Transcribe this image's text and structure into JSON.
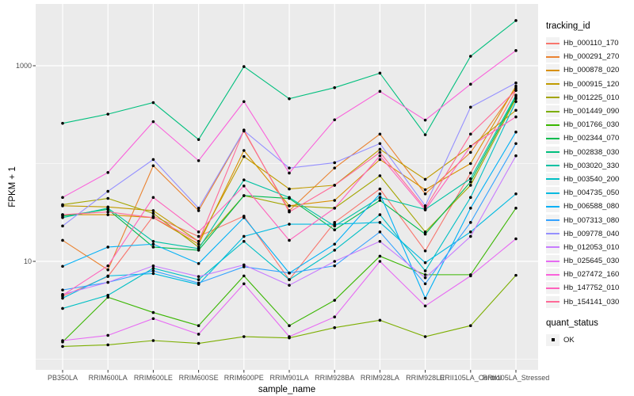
{
  "legend": {
    "tracking_title": "tracking_id",
    "quant_title": "quant_status",
    "quant_ok_label": "OK"
  },
  "chart_data": {
    "type": "line",
    "title": "",
    "xlabel": "sample_name",
    "ylabel": "FPKM + 1",
    "yscale": "log10",
    "ylim": [
      0.8,
      4300
    ],
    "grid": true,
    "legend_position": "right",
    "panel_bg": "#EBEBEB",
    "grid_color": "#FFFFFF",
    "point_color": "#000000",
    "yticks": [
      {
        "value": 10,
        "label": "10"
      },
      {
        "value": 1000,
        "label": "1000"
      }
    ],
    "minor_yticks": [
      1,
      100
    ],
    "categories": [
      "PB350LA",
      "RRIM600LA",
      "RRIM600LE",
      "RRIM600SE",
      "RRIM600PE",
      "RRIM901LA",
      "RRIM928BA",
      "RRIM928LA",
      "RRIM928LE",
      "RRII105LA_Control",
      "RRII105LA_Stressed"
    ],
    "series": [
      {
        "name": "Hb_000110_170",
        "color": "#F8766D",
        "values": [
          4.4,
          7.0,
          29,
          18,
          29,
          6.5,
          25,
          55,
          12.8,
          80,
          560
        ]
      },
      {
        "name": "Hb_000291_270",
        "color": "#EA8331",
        "values": [
          16.4,
          8.2,
          95,
          33,
          215,
          33,
          90,
          200,
          49,
          130,
          590
        ]
      },
      {
        "name": "Hb_000878_020",
        "color": "#D89000",
        "values": [
          30,
          30,
          28,
          15,
          136,
          37,
          42,
          110,
          54,
          100,
          620
        ]
      },
      {
        "name": "Hb_000915_120",
        "color": "#C09B00",
        "values": [
          37,
          36,
          33,
          16,
          118,
          55,
          60,
          140,
          69,
          150,
          350
        ]
      },
      {
        "name": "Hb_001225_010",
        "color": "#A3A500",
        "values": [
          38,
          44,
          31,
          14,
          47,
          37,
          35,
          75,
          20,
          60,
          460
        ]
      },
      {
        "name": "Hb_001449_090",
        "color": "#7CAE00",
        "values": [
          1.35,
          1.4,
          1.55,
          1.45,
          1.7,
          1.65,
          2.1,
          2.5,
          1.7,
          2.2,
          7.2
        ]
      },
      {
        "name": "Hb_001766_030",
        "color": "#39B600",
        "values": [
          1.5,
          4.3,
          3.0,
          2.2,
          7.1,
          2.2,
          4.0,
          11.3,
          7.3,
          7.3,
          35
        ]
      },
      {
        "name": "Hb_002344_070",
        "color": "#00BB4E",
        "values": [
          29,
          34,
          14,
          13,
          47,
          44,
          21,
          42,
          19,
          65,
          480
        ]
      },
      {
        "name": "Hb_002838_030",
        "color": "#00BF7D",
        "values": [
          258,
          320,
          420,
          176,
          980,
          460,
          597,
          840,
          197,
          1250,
          2900
        ]
      },
      {
        "name": "Hb_003020_330",
        "color": "#00C1A3",
        "values": [
          28,
          35,
          16,
          13.5,
          68,
          45,
          23,
          45,
          34,
          70,
          500
        ]
      },
      {
        "name": "Hb_003540_200",
        "color": "#00BFC4",
        "values": [
          3.3,
          4.5,
          8.5,
          6.5,
          16,
          6.5,
          13,
          30,
          8.0,
          45,
          430
        ]
      },
      {
        "name": "Hb_004735_050",
        "color": "#00BAE0",
        "values": [
          4.2,
          7.1,
          7.5,
          5.8,
          18,
          24,
          24,
          25,
          9.7,
          20,
          49
        ]
      },
      {
        "name": "Hb_006588_080",
        "color": "#00B0F6",
        "values": [
          8.9,
          14,
          15,
          9.5,
          28,
          7.6,
          15,
          49,
          4.2,
          35,
          210
        ]
      },
      {
        "name": "Hb_007313_080",
        "color": "#35A2FF",
        "values": [
          5.1,
          6.1,
          8.0,
          6.0,
          8.8,
          7.6,
          9.0,
          20,
          5.9,
          25,
          160
        ]
      },
      {
        "name": "Hb_009778_040",
        "color": "#9590FF",
        "values": [
          23,
          52,
          110,
          35,
          217,
          90,
          102,
          160,
          37,
          377,
          667
        ]
      },
      {
        "name": "Hb_012053_010",
        "color": "#C77CFF",
        "values": [
          4.6,
          6.1,
          9.0,
          7.0,
          9.2,
          5.7,
          10,
          16,
          6.8,
          18,
          120
        ]
      },
      {
        "name": "Hb_025645_030",
        "color": "#E76BF3",
        "values": [
          1.55,
          1.75,
          2.6,
          1.8,
          5.9,
          1.7,
          2.7,
          10,
          3.5,
          7.1,
          17
        ]
      },
      {
        "name": "Hb_027472_160",
        "color": "#FA62DB",
        "values": [
          45,
          81,
          268,
          107,
          430,
          80,
          280,
          547,
          278,
          647,
          1430
        ]
      },
      {
        "name": "Hb_147752_010",
        "color": "#FF62BC",
        "values": [
          4.5,
          9.0,
          45,
          20,
          59,
          16.4,
          35,
          120,
          33.6,
          150,
          300
        ]
      },
      {
        "name": "Hb_154141_030",
        "color": "#FF6A98",
        "values": [
          30,
          32,
          28,
          16,
          220,
          32,
          60,
          130,
          35,
          200,
          560
        ]
      }
    ]
  }
}
